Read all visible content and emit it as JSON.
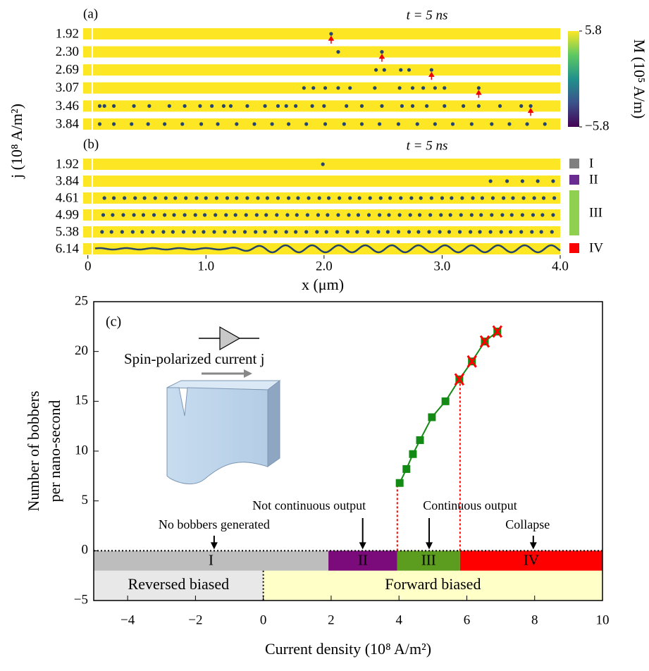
{
  "chart_data": [
    {
      "type": "strip",
      "panel_label": "(a)",
      "title": "t = 5 ns",
      "ylabel": "j (10⁸ A/m²)",
      "xlim": [
        -0.04,
        4.0
      ],
      "rows": [
        {
          "label": "1.92",
          "color": "#a0a0a0",
          "dots": [
            2.06
          ],
          "arrow": 2.06
        },
        {
          "label": "2.30",
          "color": "#6a2c91",
          "dots": [
            2.12,
            2.49
          ],
          "arrow": 2.49
        },
        {
          "label": "2.69",
          "color": "#6a2c91",
          "dots": [
            2.44,
            2.51,
            2.65,
            2.72,
            2.91
          ],
          "arrow": 2.91
        },
        {
          "label": "3.07",
          "color": "#6a2c91",
          "dots": [
            1.83,
            1.91,
            2.01,
            2.12,
            2.22,
            2.43,
            2.64,
            2.75,
            2.84,
            2.94,
            3.02,
            3.31
          ],
          "arrow": 3.31
        },
        {
          "label": "3.46",
          "color": "#6a2c91",
          "dots": [
            0.1,
            0.14,
            0.22,
            0.39,
            0.52,
            0.69,
            0.82,
            0.95,
            1.05,
            1.15,
            1.21,
            1.35,
            1.5,
            1.61,
            1.68,
            1.76,
            1.9,
            2.0,
            2.19,
            2.32,
            2.49,
            2.66,
            2.75,
            2.87,
            3.02,
            3.18,
            3.31,
            3.49,
            3.67,
            3.75
          ],
          "arrow": 3.75
        },
        {
          "label": "3.84",
          "color": "#6a2c91",
          "dots": [
            0.1,
            0.22,
            0.37,
            0.51,
            0.65,
            0.8,
            0.96,
            1.1,
            1.26,
            1.41,
            1.56,
            1.7,
            1.85,
            2.01,
            2.17,
            2.32,
            2.47,
            2.63,
            2.79,
            2.94,
            3.09,
            3.25,
            3.42,
            3.57,
            3.72,
            3.87
          ]
        }
      ],
      "colorbar": {
        "label": "M (10⁵ A/m)",
        "lim": [
          -5.8,
          5.8
        ],
        "ticks": [
          5.8,
          {
            "value": -5.8,
            "label": "−5.8"
          }
        ]
      }
    },
    {
      "type": "strip",
      "panel_label": "(b)",
      "title": "t = 5 ns",
      "xlabel": "x (μm)",
      "xlim": [
        -0.04,
        4.0
      ],
      "xticks": [
        0,
        {
          "value": 1,
          "label": "1.0"
        },
        {
          "value": 2,
          "label": "2.0"
        },
        {
          "value": 3,
          "label": "3.0"
        },
        {
          "value": 4,
          "label": "4.0"
        }
      ],
      "rows": [
        {
          "label": "1.92",
          "color": "#a0a0a0",
          "dots": [
            1.99
          ]
        },
        {
          "label": "3.84",
          "color": "#6a2c91",
          "dots": [
            3.41,
            3.55,
            3.68,
            3.81,
            3.94
          ]
        },
        {
          "label": "4.61",
          "color": "#1f9a6a",
          "dots": [
            0.14,
            0.22,
            0.31,
            0.4,
            0.48,
            0.57,
            0.66,
            0.74,
            0.83,
            0.92,
            1.0,
            1.09,
            1.18,
            1.26,
            1.35,
            1.44,
            1.52,
            1.61,
            1.7,
            1.78,
            1.87,
            1.96,
            2.04,
            2.13,
            2.22,
            2.3,
            2.39,
            2.48,
            2.56,
            2.65,
            2.74,
            2.82,
            2.91,
            3.0,
            3.08,
            3.17,
            3.26,
            3.34,
            3.43,
            3.52,
            3.6,
            3.69,
            3.78,
            3.86,
            3.95
          ]
        },
        {
          "label": "4.99",
          "color": "#1f9a6a",
          "dots": [
            0.13,
            0.21,
            0.3,
            0.39,
            0.47,
            0.56,
            0.65,
            0.73,
            0.82,
            0.91,
            0.99,
            1.08,
            1.17,
            1.25,
            1.34,
            1.43,
            1.51,
            1.6,
            1.69,
            1.77,
            1.86,
            1.95,
            2.03,
            2.12,
            2.21,
            2.29,
            2.38,
            2.47,
            2.55,
            2.64,
            2.73,
            2.81,
            2.9,
            2.99,
            3.07,
            3.16,
            3.25,
            3.33,
            3.42,
            3.51,
            3.59,
            3.68,
            3.77,
            3.85,
            3.94
          ]
        },
        {
          "label": "5.38",
          "color": "#1f9a6a",
          "dots": [
            0.12,
            0.2,
            0.29,
            0.38,
            0.46,
            0.55,
            0.64,
            0.72,
            0.81,
            0.9,
            0.98,
            1.07,
            1.16,
            1.24,
            1.33,
            1.42,
            1.5,
            1.59,
            1.68,
            1.76,
            1.85,
            1.94,
            2.02,
            2.11,
            2.2,
            2.28,
            2.37,
            2.46,
            2.54,
            2.63,
            2.72,
            2.8,
            2.89,
            2.98,
            3.06,
            3.15,
            3.24,
            3.32,
            3.41,
            3.5,
            3.58,
            3.67,
            3.76,
            3.84,
            3.93
          ]
        },
        {
          "label": "6.14",
          "color": "#ff2020",
          "dots": [],
          "wave": true
        }
      ],
      "phase_legend": [
        {
          "label": "I",
          "color": "#808080"
        },
        {
          "label": "II",
          "color": "#6a2c91"
        },
        {
          "label": "III",
          "color": "#8fd14f"
        },
        {
          "label": "IV",
          "color": "#ff0000"
        }
      ]
    },
    {
      "type": "line",
      "panel_label": "(c)",
      "xlabel": "Current density (10⁸ A/m²)",
      "ylabel": [
        "Number of bobbers",
        "per nano-second"
      ],
      "xlim": [
        -5,
        10
      ],
      "ylim": [
        -5,
        25
      ],
      "xticks": [
        {
          "value": -4,
          "label": "−4"
        },
        {
          "value": -2,
          "label": "−2"
        },
        0,
        2,
        4,
        6,
        8,
        10
      ],
      "yticks": [
        {
          "value": -5,
          "label": "−5"
        },
        0,
        5,
        10,
        15,
        20,
        25
      ],
      "series": [
        {
          "color": "#138a13",
          "marker": "square",
          "x": [
            4.02,
            4.22,
            4.41,
            4.62,
            4.97,
            5.37,
            5.78,
            6.15,
            6.53,
            6.9
          ],
          "values": [
            6.8,
            8.2,
            9.7,
            11.1,
            13.4,
            15.0,
            17.2,
            19.0,
            21.0,
            22.0
          ]
        },
        {
          "color": "#ff0000",
          "marker": "x",
          "x": [
            5.78,
            6.15,
            6.53,
            6.9
          ],
          "values": [
            17.2,
            19.0,
            21.0,
            22.0
          ]
        }
      ],
      "phase_ylim": [
        -2,
        0
      ],
      "phases": [
        {
          "label": "I",
          "from": -5,
          "to": 1.92,
          "color": "#bdbdbd"
        },
        {
          "label": "II",
          "from": 1.92,
          "to": 3.95,
          "color": "#7b0a7b"
        },
        {
          "label": "III",
          "from": 3.95,
          "to": 5.8,
          "color": "#5c9c1e"
        },
        {
          "label": "IV",
          "from": 5.8,
          "to": 10,
          "color": "#ff0000"
        }
      ],
      "bias_ylim": [
        -5,
        -2
      ],
      "bias": [
        {
          "label": "Reversed biased",
          "from": -5,
          "to": 0,
          "color": "#e8e8e8",
          "text_color": "#8b2a8b"
        },
        {
          "label": "Forward biased",
          "from": 0,
          "to": 10,
          "color": "#ffffc8",
          "text_color": "#1e7b2e"
        }
      ],
      "thresholds": [
        {
          "x": 3.95,
          "y": 6.8
        },
        {
          "x": 5.8,
          "y": 17.2
        }
      ],
      "annotations": [
        {
          "text": "No bobbers generated",
          "x": -1.45,
          "color": "#8b2a8b"
        },
        {
          "text": "Not continuous output",
          "x": 2.93,
          "color": "#8b2a8b"
        },
        {
          "text": "Continuous output",
          "x": 4.89,
          "color": "#1e7b2e"
        },
        {
          "text": "Collapse",
          "x": 7.96,
          "color": "#ff0000"
        }
      ],
      "inset_label": "Spin-polarized current j"
    }
  ]
}
